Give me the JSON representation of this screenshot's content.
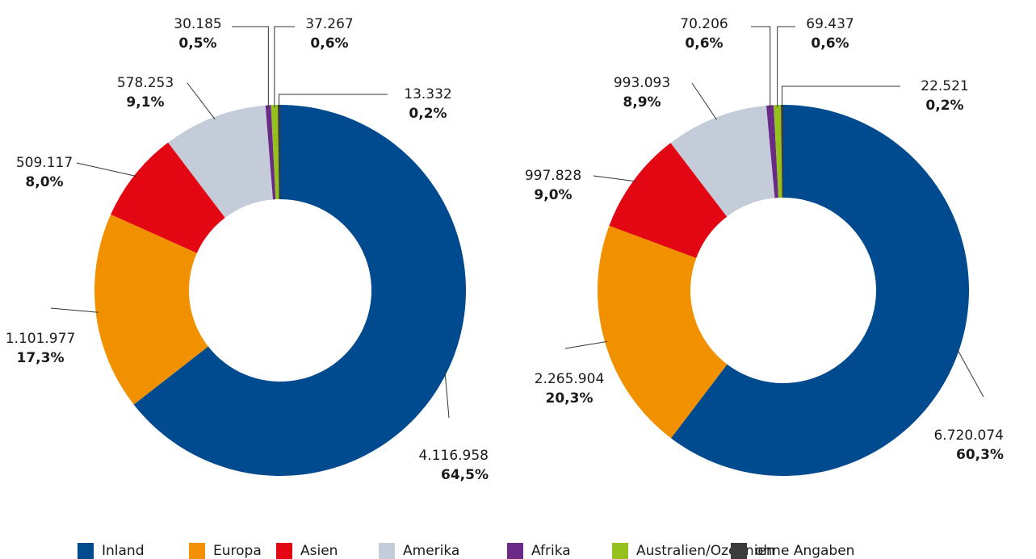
{
  "chart_data": [
    {
      "type": "donut",
      "categories": [
        "Inland",
        "Europa",
        "Asien",
        "Amerika",
        "Afrika",
        "Australien/Ozeanien",
        "ohne Angaben"
      ],
      "colors": [
        "#004a8f",
        "#f29100",
        "#e30613",
        "#c3ccd8",
        "#6b2a85",
        "#95c11f",
        "#3c3c3c"
      ],
      "values": [
        4116958,
        1101977,
        509117,
        578253,
        30185,
        37267,
        13332
      ],
      "value_labels": [
        "4.116.958",
        "1.101.977",
        "509.117",
        "578.253",
        "30.185",
        "37.267",
        "13.332"
      ],
      "percentages": [
        64.5,
        17.3,
        8.0,
        9.1,
        0.5,
        0.6,
        0.2
      ],
      "percentage_labels": [
        "64,5%",
        "17,3%",
        "8,0%",
        "9,1%",
        "0,5%",
        "0,6%",
        "0,2%"
      ]
    },
    {
      "type": "donut",
      "categories": [
        "Inland",
        "Europa",
        "Asien",
        "Amerika",
        "Afrika",
        "Australien/Ozeanien",
        "ohne Angaben"
      ],
      "colors": [
        "#004a8f",
        "#f29100",
        "#e30613",
        "#c3ccd8",
        "#6b2a85",
        "#95c11f",
        "#3c3c3c"
      ],
      "values": [
        6720074,
        2265904,
        997828,
        993093,
        70206,
        69437,
        22521
      ],
      "value_labels": [
        "6.720.074",
        "2.265.904",
        "997.828",
        "993.093",
        "70.206",
        "69.437",
        "22.521"
      ],
      "percentages": [
        60.3,
        20.3,
        9.0,
        8.9,
        0.6,
        0.6,
        0.2
      ],
      "percentage_labels": [
        "60,3%",
        "20,3%",
        "9,0%",
        "8,9%",
        "0,6%",
        "0,6%",
        "0,2%"
      ]
    }
  ]
}
